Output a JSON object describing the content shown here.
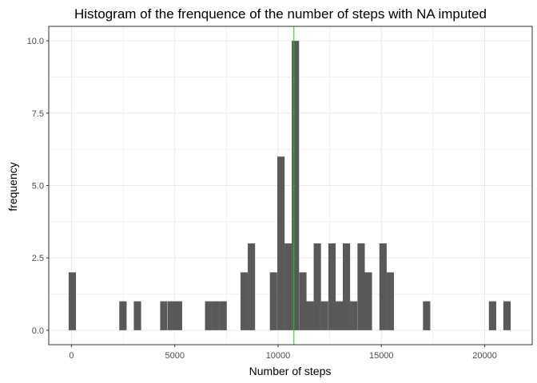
{
  "chart_data": {
    "type": "bar",
    "title": "Histogram of the frenquence of the number of steps with NA imputed",
    "xlabel": "Number of steps",
    "ylabel": "frequency",
    "xlim": [
      -1100,
      22300
    ],
    "ylim": [
      -0.5,
      10.5
    ],
    "x_ticks": [
      0,
      5000,
      10000,
      15000,
      20000
    ],
    "x_tick_labels": [
      "0",
      "5000",
      "10000",
      "15000",
      "20000"
    ],
    "y_ticks": [
      0,
      2.5,
      5,
      7.5,
      10
    ],
    "y_tick_labels": [
      "0.0",
      "2.5",
      "5.0",
      "7.5",
      "10.0"
    ],
    "grid": true,
    "bin_width": 354,
    "bins": [
      {
        "x": 41,
        "count": 2
      },
      {
        "x": 2492,
        "count": 1
      },
      {
        "x": 3194,
        "count": 1
      },
      {
        "x": 4470,
        "count": 1
      },
      {
        "x": 4840,
        "count": 1
      },
      {
        "x": 5180,
        "count": 1
      },
      {
        "x": 6640,
        "count": 1
      },
      {
        "x": 6990,
        "count": 1
      },
      {
        "x": 7340,
        "count": 1
      },
      {
        "x": 8360,
        "count": 2
      },
      {
        "x": 8710,
        "count": 3
      },
      {
        "x": 9780,
        "count": 2
      },
      {
        "x": 10140,
        "count": 6
      },
      {
        "x": 10490,
        "count": 3
      },
      {
        "x": 10840,
        "count": 10
      },
      {
        "x": 11200,
        "count": 2
      },
      {
        "x": 11550,
        "count": 1
      },
      {
        "x": 11900,
        "count": 3
      },
      {
        "x": 12250,
        "count": 1
      },
      {
        "x": 12610,
        "count": 3
      },
      {
        "x": 12960,
        "count": 1
      },
      {
        "x": 13310,
        "count": 3
      },
      {
        "x": 13660,
        "count": 1
      },
      {
        "x": 14020,
        "count": 3
      },
      {
        "x": 14370,
        "count": 2
      },
      {
        "x": 15080,
        "count": 3
      },
      {
        "x": 15430,
        "count": 2
      },
      {
        "x": 17190,
        "count": 1
      },
      {
        "x": 20380,
        "count": 1
      },
      {
        "x": 21080,
        "count": 1
      }
    ],
    "vline": {
      "x": 10766,
      "color": "#22cc22"
    },
    "bar_color": "#595959",
    "grid_color": "#ebebeb",
    "panel_border_color": "#333333"
  }
}
